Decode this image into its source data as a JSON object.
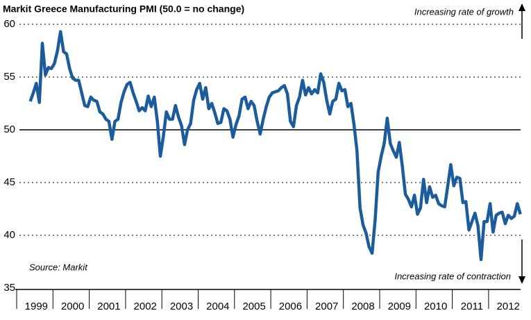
{
  "chart_data": {
    "type": "line",
    "title": "Markit Greece Manufacturing PMI (50.0 = no change)",
    "annotations": [
      "Increasing rate of growth",
      "Increasing rate of contraction",
      "Source: Markit"
    ],
    "categories": [
      null,
      null,
      "1999",
      null,
      null,
      null,
      null,
      null,
      null,
      null,
      null,
      null,
      null,
      null,
      "2000",
      null,
      null,
      null,
      null,
      null,
      null,
      null,
      null,
      null,
      null,
      null,
      "2001",
      null,
      null,
      null,
      null,
      null,
      null,
      null,
      null,
      null,
      null,
      null,
      "2002",
      null,
      null,
      null,
      null,
      null,
      null,
      null,
      null,
      null,
      null,
      null,
      "2003",
      null,
      null,
      null,
      null,
      null,
      null,
      null,
      null,
      null,
      null,
      null,
      "2004",
      null,
      null,
      null,
      null,
      null,
      null,
      null,
      null,
      null,
      null,
      null,
      "2005",
      null,
      null,
      null,
      null,
      null,
      null,
      null,
      null,
      null,
      null,
      null,
      "2006",
      null,
      null,
      null,
      null,
      null,
      null,
      null,
      null,
      null,
      null,
      null,
      "2007",
      null,
      null,
      null,
      null,
      null,
      null,
      null,
      null,
      null,
      null,
      null,
      "2008",
      null,
      null,
      null,
      null,
      null,
      null,
      null,
      null,
      null,
      null,
      null,
      "2009",
      null,
      null,
      null,
      null,
      null,
      null,
      null,
      null,
      null,
      null,
      null,
      "2010",
      null,
      null,
      null,
      null,
      null,
      null,
      null,
      null,
      null,
      null,
      null,
      "2011",
      null,
      null,
      null,
      null,
      null,
      null,
      null,
      null,
      null,
      null,
      null,
      "2012",
      null,
      null,
      null,
      null
    ],
    "series": [
      {
        "name": "Markit Greece Manufacturing PMI",
        "color": "#1c5b9c",
        "values": [
          52.7,
          53.5,
          54.4,
          52.6,
          58.2,
          55.2,
          55.9,
          55.8,
          56.3,
          57.5,
          59.3,
          57.4,
          57.2,
          55.8,
          54.9,
          54.7,
          54.7,
          53.5,
          52.3,
          52.2,
          53.1,
          52.8,
          52.7,
          51.7,
          51.5,
          51.0,
          50.8,
          49.1,
          50.8,
          51.0,
          52.6,
          53.6,
          54.3,
          54.5,
          53.5,
          52.7,
          51.8,
          52.1,
          51.8,
          53.2,
          52.2,
          53.1,
          50.8,
          47.5,
          49.4,
          51.7,
          51.0,
          51.0,
          52.3,
          51.2,
          50.4,
          48.6,
          50.0,
          50.6,
          52.8,
          53.8,
          54.4,
          52.9,
          54.0,
          52.0,
          52.5,
          51.6,
          50.6,
          50.7,
          52.0,
          51.8,
          51.0,
          49.3,
          50.5,
          51.3,
          52.9,
          53.1,
          52.0,
          52.7,
          52.3,
          50.8,
          49.6,
          51.0,
          52.2,
          53.1,
          53.5,
          53.6,
          53.7,
          54.0,
          54.2,
          53.4,
          50.8,
          50.3,
          52.3,
          53.1,
          54.7,
          53.3,
          54.0,
          53.4,
          53.8,
          53.5,
          55.3,
          54.5,
          52.8,
          51.5,
          52.7,
          52.9,
          54.4,
          53.7,
          53.8,
          52.2,
          52.5,
          50.5,
          48.0,
          42.6,
          41.0,
          40.2,
          38.9,
          38.3,
          41.5,
          46.0,
          47.5,
          48.7,
          51.1,
          48.7,
          48.0,
          47.4,
          48.8,
          46.5,
          43.9,
          43.4,
          42.7,
          43.8,
          42.0,
          42.6,
          45.3,
          43.1,
          44.6,
          43.6,
          43.8,
          43.0,
          42.8,
          42.7,
          44.7,
          46.7,
          44.7,
          45.5,
          45.4,
          43.1,
          43.2,
          40.5,
          41.3,
          42.1,
          40.9,
          37.7,
          41.3,
          41.3,
          43.0,
          40.3,
          41.9,
          42.1,
          42.2,
          41.1,
          41.9,
          41.6,
          41.8,
          43.0,
          42.0
        ]
      }
    ],
    "ylim": [
      35,
      60
    ],
    "yticks": [
      35,
      40,
      45,
      50,
      55,
      60
    ],
    "no_change_level": 50,
    "grid": true
  }
}
